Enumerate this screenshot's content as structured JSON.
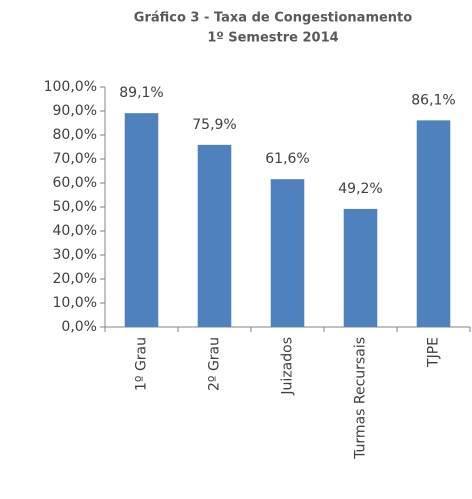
{
  "chart_data": {
    "type": "bar",
    "title": "Gráfico 3 - Taxa de Congestionamento",
    "subtitle": "1º Semestre 2014",
    "categories": [
      "1º Grau",
      "2º Grau",
      "Juizados",
      "Turmas Recursais",
      "TJPE"
    ],
    "values": [
      89.1,
      75.9,
      61.6,
      49.2,
      86.1
    ],
    "value_labels": [
      "89,1%",
      "75,9%",
      "61,6%",
      "49,2%",
      "86,1%"
    ],
    "color": "#4f81bd",
    "ylim": [
      0,
      100
    ],
    "yticks": [
      {
        "value": 0,
        "label": "0,0%"
      },
      {
        "value": 10,
        "label": "10,0%"
      },
      {
        "value": 20,
        "label": "20,0%"
      },
      {
        "value": 30,
        "label": "30,0%"
      },
      {
        "value": 40,
        "label": "40,0%"
      },
      {
        "value": 50,
        "label": "50,0%"
      },
      {
        "value": 60,
        "label": "60,0%"
      },
      {
        "value": 70,
        "label": "70,0%"
      },
      {
        "value": 80,
        "label": "80,0%"
      },
      {
        "value": 90,
        "label": "90,0%"
      },
      {
        "value": 100,
        "label": "100,0%"
      }
    ],
    "grid": false
  }
}
